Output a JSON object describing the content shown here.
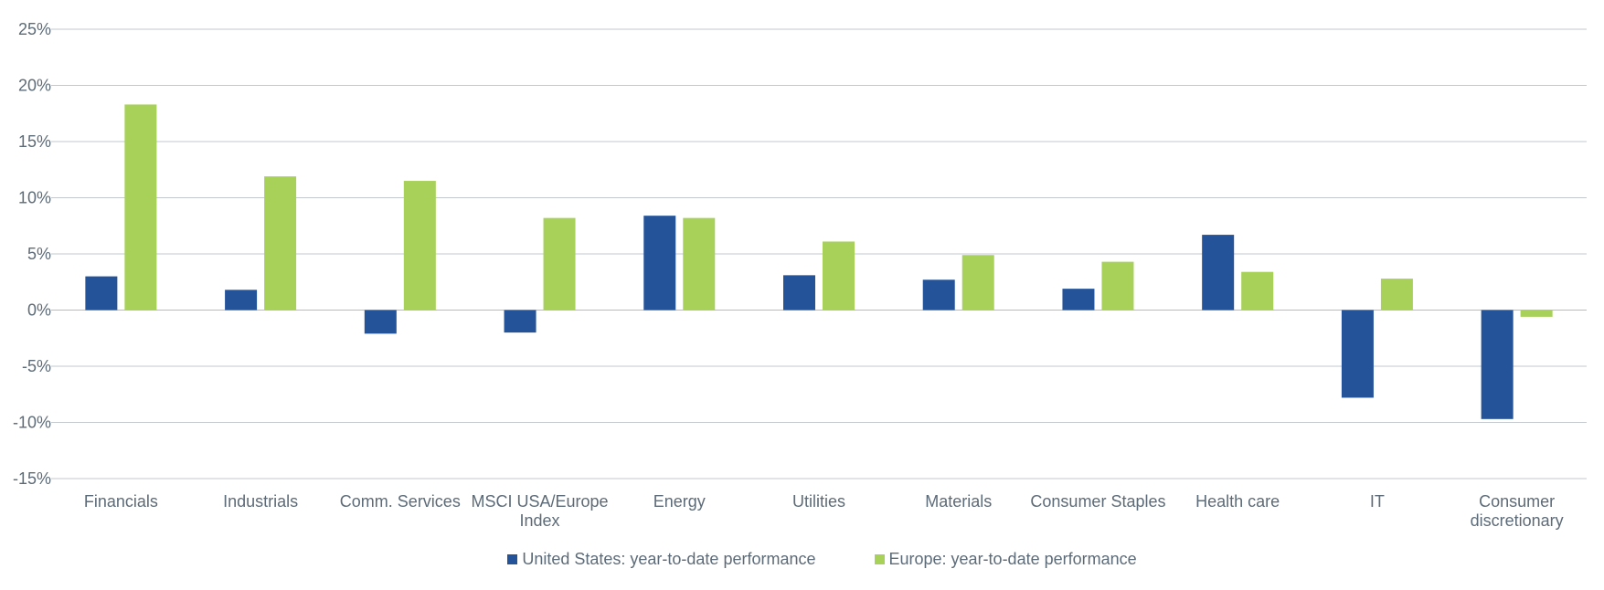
{
  "chart_data": {
    "type": "bar",
    "categories": [
      [
        "Financials"
      ],
      [
        "Industrials"
      ],
      [
        "Comm. Services"
      ],
      [
        "MSCI USA/Europe",
        "Index"
      ],
      [
        "Energy"
      ],
      [
        "Utilities"
      ],
      [
        "Materials"
      ],
      [
        "Consumer Staples"
      ],
      [
        "Health care"
      ],
      [
        "IT"
      ],
      [
        "Consumer",
        "discretionary"
      ]
    ],
    "series": [
      {
        "name": "United States: year-to-date performance",
        "color": "#24539a",
        "values": [
          3.0,
          1.8,
          -2.1,
          -2.0,
          8.4,
          3.1,
          2.7,
          1.9,
          6.7,
          -7.8,
          -9.7
        ]
      },
      {
        "name": "Europe: year-to-date performance",
        "color": "#a8d15a",
        "values": [
          18.3,
          11.9,
          11.5,
          8.2,
          8.2,
          6.1,
          4.9,
          4.3,
          3.4,
          2.8,
          -0.6
        ]
      }
    ],
    "yticks": [
      "25%",
      "20%",
      "15%",
      "10%",
      "5%",
      "0%",
      "-5%",
      "-10%",
      "-15%"
    ],
    "ytick_values": [
      25,
      20,
      15,
      10,
      5,
      0,
      -5,
      -10,
      -15
    ],
    "ylim": [
      -15,
      25
    ],
    "grid": true,
    "legend_position": "bottom"
  }
}
